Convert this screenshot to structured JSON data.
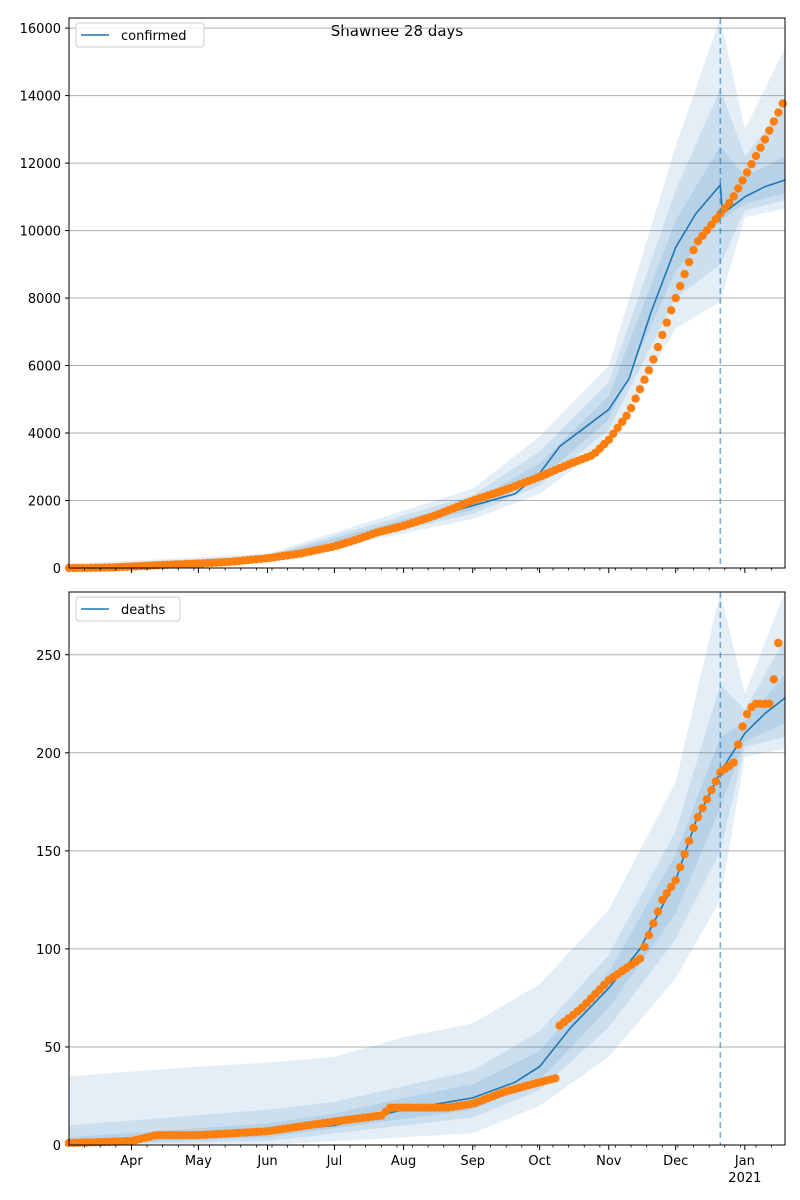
{
  "figure": {
    "title": "Shawnee 28 days"
  },
  "colors": {
    "model": "#1f77b4",
    "observed": "#ff7f0e",
    "grid": "#b0b0b0",
    "band": "#1f77b4"
  },
  "chart_data": [
    {
      "type": "line",
      "name": "confirmed",
      "title": "Shawnee 28 days",
      "legend": {
        "label": "confirmed",
        "placement": "top-left"
      },
      "x_range": [
        "2020-03-04",
        "2021-01-19"
      ],
      "ylim": [
        0,
        16300
      ],
      "y_ticks": [
        0,
        2000,
        4000,
        6000,
        8000,
        10000,
        12000,
        14000,
        16000
      ],
      "x_ticks": [
        {
          "date": "2020-04-01",
          "label": "Apr"
        },
        {
          "date": "2020-05-01",
          "label": "May"
        },
        {
          "date": "2020-06-01",
          "label": "Jun"
        },
        {
          "date": "2020-07-01",
          "label": "Jul"
        },
        {
          "date": "2020-08-01",
          "label": "Aug"
        },
        {
          "date": "2020-09-01",
          "label": "Sep"
        },
        {
          "date": "2020-10-01",
          "label": "Oct"
        },
        {
          "date": "2020-11-01",
          "label": "Nov"
        },
        {
          "date": "2020-12-01",
          "label": "Dec"
        },
        {
          "date": "2021-01-01",
          "label": "Jan",
          "sublabel": "2021"
        }
      ],
      "forecast_start": "2020-12-21",
      "grid": "horizontal",
      "model": [
        [
          "2020-03-04",
          0
        ],
        [
          "2020-04-01",
          30
        ],
        [
          "2020-05-01",
          130
        ],
        [
          "2020-06-01",
          310
        ],
        [
          "2020-07-01",
          660
        ],
        [
          "2020-07-20",
          1000
        ],
        [
          "2020-08-01",
          1280
        ],
        [
          "2020-09-01",
          1850
        ],
        [
          "2020-09-20",
          2200
        ],
        [
          "2020-10-01",
          2800
        ],
        [
          "2020-10-10",
          3600
        ],
        [
          "2020-10-20",
          4100
        ],
        [
          "2020-11-01",
          4700
        ],
        [
          "2020-11-10",
          5600
        ],
        [
          "2020-11-20",
          7600
        ],
        [
          "2020-12-01",
          9500
        ],
        [
          "2020-12-10",
          10500
        ],
        [
          "2020-12-21",
          11350
        ],
        [
          "2020-12-22",
          10500
        ],
        [
          "2021-01-01",
          11000
        ],
        [
          "2021-01-10",
          11300
        ],
        [
          "2021-01-19",
          11500
        ]
      ],
      "bands": [
        {
          "lower": [
            [
              "2020-03-04",
              0
            ],
            [
              "2020-06-01",
              200
            ],
            [
              "2020-09-01",
              1450
            ],
            [
              "2020-10-01",
              2200
            ],
            [
              "2020-11-01",
              3700
            ],
            [
              "2020-12-01",
              7100
            ],
            [
              "2020-12-21",
              7900
            ],
            [
              "2021-01-01",
              10400
            ],
            [
              "2021-01-19",
              10650
            ]
          ],
          "upper": [
            [
              "2020-03-04",
              120
            ],
            [
              "2020-06-01",
              420
            ],
            [
              "2020-09-01",
              2350
            ],
            [
              "2020-10-01",
              3900
            ],
            [
              "2020-11-01",
              6000
            ],
            [
              "2020-12-01",
              12500
            ],
            [
              "2020-12-21",
              16300
            ],
            [
              "2021-01-01",
              13000
            ],
            [
              "2021-01-19",
              15400
            ]
          ]
        },
        {
          "lower": [
            [
              "2020-03-04",
              0
            ],
            [
              "2020-06-01",
              240
            ],
            [
              "2020-09-01",
              1600
            ],
            [
              "2020-10-01",
              2450
            ],
            [
              "2020-11-01",
              4100
            ],
            [
              "2020-12-01",
              8000
            ],
            [
              "2020-12-21",
              9000
            ],
            [
              "2021-01-01",
              10600
            ],
            [
              "2021-01-19",
              10900
            ]
          ],
          "upper": [
            [
              "2020-03-04",
              70
            ],
            [
              "2020-06-01",
              380
            ],
            [
              "2020-09-01",
              2150
            ],
            [
              "2020-10-01",
              3450
            ],
            [
              "2020-11-01",
              5500
            ],
            [
              "2020-12-01",
              11200
            ],
            [
              "2020-12-21",
              14200
            ],
            [
              "2021-01-01",
              12200
            ],
            [
              "2021-01-19",
              13700
            ]
          ]
        },
        {
          "lower": [
            [
              "2020-03-04",
              0
            ],
            [
              "2020-06-01",
              270
            ],
            [
              "2020-09-01",
              1720
            ],
            [
              "2020-10-01",
              2620
            ],
            [
              "2020-11-01",
              4400
            ],
            [
              "2020-12-01",
              8800
            ],
            [
              "2020-12-21",
              10300
            ],
            [
              "2021-01-01",
              10800
            ],
            [
              "2021-01-19",
              11100
            ]
          ],
          "upper": [
            [
              "2020-03-04",
              40
            ],
            [
              "2020-06-01",
              350
            ],
            [
              "2020-09-01",
              1980
            ],
            [
              "2020-10-01",
              3100
            ],
            [
              "2020-11-01",
              5100
            ],
            [
              "2020-12-01",
              10300
            ],
            [
              "2020-12-21",
              12500
            ],
            [
              "2021-01-01",
              11600
            ],
            [
              "2021-01-19",
              12200
            ]
          ]
        }
      ],
      "observed": [
        [
          "2020-03-04",
          0
        ],
        [
          "2020-03-15",
          5
        ],
        [
          "2020-03-25",
          20
        ],
        [
          "2020-04-01",
          40
        ],
        [
          "2020-04-15",
          90
        ],
        [
          "2020-05-01",
          130
        ],
        [
          "2020-05-15",
          180
        ],
        [
          "2020-06-01",
          290
        ],
        [
          "2020-06-15",
          420
        ],
        [
          "2020-07-01",
          640
        ],
        [
          "2020-07-10",
          820
        ],
        [
          "2020-07-20",
          1050
        ],
        [
          "2020-08-01",
          1250
        ],
        [
          "2020-08-15",
          1550
        ],
        [
          "2020-09-01",
          2000
        ],
        [
          "2020-09-15",
          2300
        ],
        [
          "2020-10-01",
          2700
        ],
        [
          "2020-10-15",
          3100
        ],
        [
          "2020-10-25",
          3350
        ],
        [
          "2020-11-01",
          3800
        ],
        [
          "2020-11-10",
          4600
        ],
        [
          "2020-11-20",
          6000
        ],
        [
          "2020-12-01",
          8000
        ],
        [
          "2020-12-10",
          9600
        ],
        [
          "2020-12-21",
          10500
        ],
        [
          "2020-12-26",
          10900
        ],
        [
          "2021-01-01",
          11600
        ],
        [
          "2021-01-10",
          12700
        ],
        [
          "2021-01-19",
          13900
        ]
      ]
    },
    {
      "type": "line",
      "name": "deaths",
      "legend": {
        "label": "deaths",
        "placement": "top-left"
      },
      "x_range": [
        "2020-03-04",
        "2021-01-19"
      ],
      "ylim": [
        0,
        282
      ],
      "y_ticks": [
        0,
        50,
        100,
        150,
        200,
        250
      ],
      "x_ticks": [
        {
          "date": "2020-04-01",
          "label": "Apr"
        },
        {
          "date": "2020-05-01",
          "label": "May"
        },
        {
          "date": "2020-06-01",
          "label": "Jun"
        },
        {
          "date": "2020-07-01",
          "label": "Jul"
        },
        {
          "date": "2020-08-01",
          "label": "Aug"
        },
        {
          "date": "2020-09-01",
          "label": "Sep"
        },
        {
          "date": "2020-10-01",
          "label": "Oct"
        },
        {
          "date": "2020-11-01",
          "label": "Nov"
        },
        {
          "date": "2020-12-01",
          "label": "Dec"
        },
        {
          "date": "2021-01-01",
          "label": "Jan",
          "sublabel": "2021"
        }
      ],
      "forecast_start": "2020-12-21",
      "grid": "horizontal",
      "model": [
        [
          "2020-03-04",
          0
        ],
        [
          "2020-04-01",
          3
        ],
        [
          "2020-05-01",
          5
        ],
        [
          "2020-06-01",
          7
        ],
        [
          "2020-07-01",
          10
        ],
        [
          "2020-08-01",
          18
        ],
        [
          "2020-09-01",
          24
        ],
        [
          "2020-09-20",
          32
        ],
        [
          "2020-10-01",
          40
        ],
        [
          "2020-10-15",
          60
        ],
        [
          "2020-11-01",
          80
        ],
        [
          "2020-11-15",
          100
        ],
        [
          "2020-12-01",
          135
        ],
        [
          "2020-12-10",
          165
        ],
        [
          "2020-12-21",
          190
        ],
        [
          "2021-01-01",
          210
        ],
        [
          "2021-01-10",
          220
        ],
        [
          "2021-01-19",
          228
        ]
      ],
      "bands": [
        {
          "lower": [
            [
              "2020-03-04",
              0
            ],
            [
              "2020-06-01",
              0
            ],
            [
              "2020-09-01",
              6
            ],
            [
              "2020-10-01",
              20
            ],
            [
              "2020-11-01",
              45
            ],
            [
              "2020-12-01",
              85
            ],
            [
              "2020-12-21",
              125
            ],
            [
              "2021-01-01",
              198
            ],
            [
              "2021-01-19",
              202
            ]
          ],
          "upper": [
            [
              "2020-03-04",
              35
            ],
            [
              "2020-05-01",
              40
            ],
            [
              "2020-06-01",
              42
            ],
            [
              "2020-07-01",
              45
            ],
            [
              "2020-08-01",
              55
            ],
            [
              "2020-09-01",
              62
            ],
            [
              "2020-10-01",
              82
            ],
            [
              "2020-11-01",
              120
            ],
            [
              "2020-12-01",
              185
            ],
            [
              "2020-12-21",
              282
            ],
            [
              "2021-01-01",
              230
            ],
            [
              "2021-01-19",
              282
            ]
          ]
        },
        {
          "lower": [
            [
              "2020-03-04",
              0
            ],
            [
              "2020-06-01",
              2
            ],
            [
              "2020-09-01",
              14
            ],
            [
              "2020-10-01",
              28
            ],
            [
              "2020-11-01",
              60
            ],
            [
              "2020-12-01",
              105
            ],
            [
              "2020-12-21",
              150
            ],
            [
              "2021-01-01",
              203
            ],
            [
              "2021-01-19",
              208
            ]
          ],
          "upper": [
            [
              "2020-03-04",
              10
            ],
            [
              "2020-06-01",
              18
            ],
            [
              "2020-07-01",
              22
            ],
            [
              "2020-08-01",
              30
            ],
            [
              "2020-09-01",
              38
            ],
            [
              "2020-10-01",
              58
            ],
            [
              "2020-11-01",
              97
            ],
            [
              "2020-12-01",
              160
            ],
            [
              "2020-12-21",
              235
            ],
            [
              "2021-01-01",
              222
            ],
            [
              "2021-01-19",
              258
            ]
          ]
        },
        {
          "lower": [
            [
              "2020-03-04",
              0
            ],
            [
              "2020-06-01",
              4
            ],
            [
              "2020-09-01",
              18
            ],
            [
              "2020-10-01",
              33
            ],
            [
              "2020-11-01",
              70
            ],
            [
              "2020-12-01",
              118
            ],
            [
              "2020-12-21",
              172
            ],
            [
              "2021-01-01",
              206
            ],
            [
              "2021-01-19",
              215
            ]
          ],
          "upper": [
            [
              "2020-03-04",
              4
            ],
            [
              "2020-06-01",
              11
            ],
            [
              "2020-07-01",
              16
            ],
            [
              "2020-08-01",
              24
            ],
            [
              "2020-09-01",
              31
            ],
            [
              "2020-10-01",
              48
            ],
            [
              "2020-11-01",
              88
            ],
            [
              "2020-12-01",
              148
            ],
            [
              "2020-12-21",
              208
            ],
            [
              "2021-01-01",
              216
            ],
            [
              "2021-01-19",
              240
            ]
          ]
        }
      ],
      "observed": [
        [
          "2020-03-04",
          1
        ],
        [
          "2020-04-01",
          2
        ],
        [
          "2020-04-12",
          5
        ],
        [
          "2020-05-01",
          5
        ],
        [
          "2020-06-01",
          7
        ],
        [
          "2020-07-01",
          12
        ],
        [
          "2020-07-22",
          15
        ],
        [
          "2020-07-26",
          19
        ],
        [
          "2020-08-20",
          19
        ],
        [
          "2020-09-01",
          21
        ],
        [
          "2020-09-15",
          27
        ],
        [
          "2020-10-01",
          32
        ],
        [
          "2020-10-08",
          34
        ],
        [
          "2020-10-09",
          60
        ],
        [
          "2020-10-20",
          70
        ],
        [
          "2020-11-01",
          84
        ],
        [
          "2020-11-15",
          95
        ],
        [
          "2020-11-25",
          125
        ],
        [
          "2020-12-01",
          135
        ],
        [
          "2020-12-10",
          165
        ],
        [
          "2020-12-21",
          190
        ],
        [
          "2020-12-27",
          195
        ],
        [
          "2021-01-01",
          218
        ],
        [
          "2021-01-05",
          225
        ],
        [
          "2021-01-13",
          225
        ],
        [
          "2021-01-15",
          250
        ],
        [
          "2021-01-17",
          262
        ]
      ]
    }
  ]
}
